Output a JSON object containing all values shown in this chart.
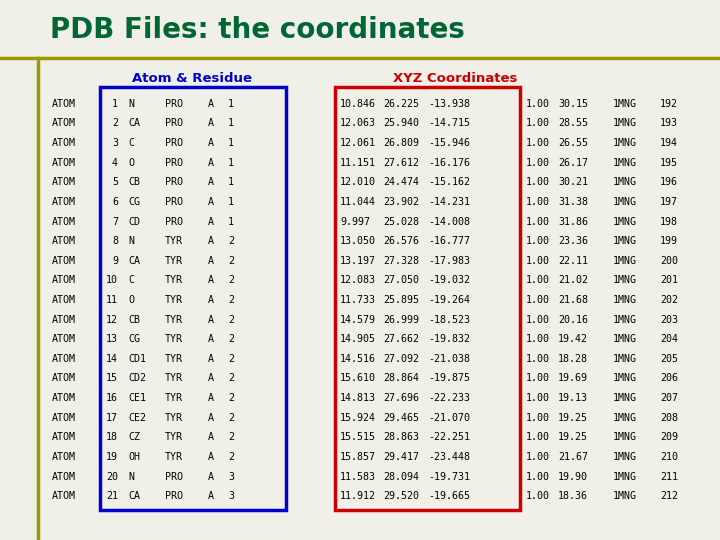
{
  "title": "PDB Files: the coordinates",
  "title_color": "#006633",
  "title_fontsize": 20,
  "header_line_color": "#999900",
  "bg_color": "#f0f0e8",
  "atom_residue_header": "Atom & Residue",
  "xyz_header": "XYZ Coordinates",
  "atom_col_header_color": "#0000cc",
  "xyz_col_header_color": "#cc0000",
  "atom_box_color": "#0000cc",
  "xyz_box_color": "#cc0000",
  "atom_col": [
    "ATOM",
    "ATOM",
    "ATOM",
    "ATOM",
    "ATOM",
    "ATOM",
    "ATOM",
    "ATOM",
    "ATOM",
    "ATOM",
    "ATOM",
    "ATOM",
    "ATOM",
    "ATOM",
    "ATOM",
    "ATOM",
    "ATOM",
    "ATOM",
    "ATOM",
    "ATOM",
    "ATOM"
  ],
  "num_col": [
    1,
    2,
    3,
    4,
    5,
    6,
    7,
    8,
    9,
    10,
    11,
    12,
    13,
    14,
    15,
    16,
    17,
    18,
    19,
    20,
    21
  ],
  "name_col": [
    "N",
    "CA",
    "C",
    "O",
    "CB",
    "CG",
    "CD",
    "N",
    "CA",
    "C",
    "O",
    "CB",
    "CG",
    "CD1",
    "CD2",
    "CE1",
    "CE2",
    "CZ",
    "OH",
    "N",
    "CA"
  ],
  "res_col": [
    "PRO",
    "PRO",
    "PRO",
    "PRO",
    "PRO",
    "PRO",
    "PRO",
    "TYR",
    "TYR",
    "TYR",
    "TYR",
    "TYR",
    "TYR",
    "TYR",
    "TYR",
    "TYR",
    "TYR",
    "TYR",
    "TYR",
    "PRO",
    "PRO"
  ],
  "chain_col": [
    "A",
    "A",
    "A",
    "A",
    "A",
    "A",
    "A",
    "A",
    "A",
    "A",
    "A",
    "A",
    "A",
    "A",
    "A",
    "A",
    "A",
    "A",
    "A",
    "A",
    "A"
  ],
  "resnum_col": [
    1,
    1,
    1,
    1,
    1,
    1,
    1,
    2,
    2,
    2,
    2,
    2,
    2,
    2,
    2,
    2,
    2,
    2,
    2,
    3,
    3
  ],
  "x_col": [
    10.846,
    12.063,
    12.061,
    11.151,
    12.01,
    11.044,
    9.997,
    13.05,
    13.197,
    12.083,
    11.733,
    14.579,
    14.905,
    14.516,
    15.61,
    14.813,
    15.924,
    15.515,
    15.857,
    11.583,
    11.912
  ],
  "y_col": [
    26.225,
    25.94,
    26.809,
    27.612,
    24.474,
    23.902,
    25.028,
    26.576,
    27.328,
    27.05,
    25.895,
    26.999,
    27.662,
    27.092,
    28.864,
    27.696,
    29.465,
    28.863,
    29.417,
    28.094,
    29.52
  ],
  "z_col": [
    -13.938,
    -14.715,
    -15.946,
    -16.176,
    -15.162,
    -14.231,
    -14.008,
    -16.777,
    -17.983,
    -19.032,
    -19.264,
    -18.523,
    -19.832,
    -21.038,
    -19.875,
    -22.233,
    -21.07,
    -22.251,
    -23.448,
    -19.731,
    -19.665
  ],
  "occ_col": [
    1.0,
    1.0,
    1.0,
    1.0,
    1.0,
    1.0,
    1.0,
    1.0,
    1.0,
    1.0,
    1.0,
    1.0,
    1.0,
    1.0,
    1.0,
    1.0,
    1.0,
    1.0,
    1.0,
    1.0,
    1.0
  ],
  "bfac_col": [
    30.15,
    28.55,
    26.55,
    26.17,
    30.21,
    31.38,
    31.86,
    23.36,
    22.11,
    21.02,
    21.68,
    20.16,
    19.42,
    18.28,
    19.69,
    19.13,
    19.25,
    19.25,
    21.67,
    19.9,
    18.36
  ],
  "pdb_col": [
    "1MNG",
    "1MNG",
    "1MNG",
    "1MNG",
    "1MNG",
    "1MNG",
    "1MNG",
    "1MNG",
    "1MNG",
    "1MNG",
    "1MNG",
    "1MNG",
    "1MNG",
    "1MNG",
    "1MNG",
    "1MNG",
    "1MNG",
    "1MNG",
    "1MNG",
    "1MNG",
    "1MNG"
  ],
  "seq_col": [
    192,
    193,
    194,
    195,
    196,
    197,
    198,
    199,
    200,
    201,
    202,
    203,
    204,
    205,
    206,
    207,
    208,
    209,
    210,
    211,
    212
  ],
  "data_fontsize": 7.2
}
